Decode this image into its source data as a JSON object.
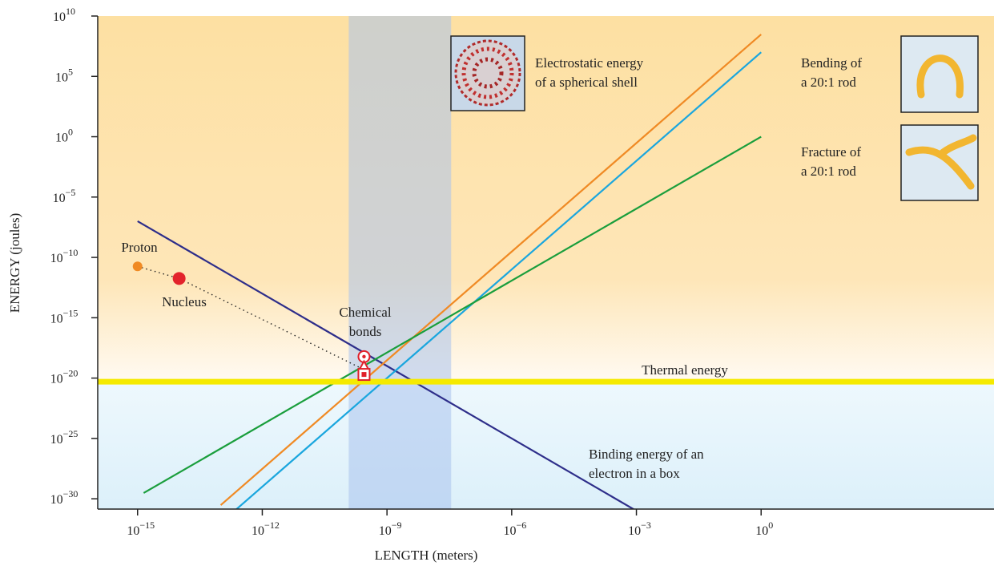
{
  "chart_data": {
    "type": "line",
    "xlabel": "LENGTH (meters)",
    "ylabel": "ENERGY (joules)",
    "xlog": true,
    "ylog": true,
    "xlim": [
      1.1e-16,
      400000.0
    ],
    "ylim": [
      1.4e-31,
      10000000000.0
    ],
    "xticks": [
      {
        "value": 1e-15,
        "label": "10−15"
      },
      {
        "value": 1e-12,
        "label": "10−12"
      },
      {
        "value": 1e-09,
        "label": "10−9"
      },
      {
        "value": 1e-06,
        "label": "10−6"
      },
      {
        "value": 0.001,
        "label": "10−3"
      },
      {
        "value": 1,
        "label": "100"
      }
    ],
    "yticks": [
      {
        "value": 10000000000.0,
        "label": "1010"
      },
      {
        "value": 100000.0,
        "label": "105"
      },
      {
        "value": 1,
        "label": "100"
      },
      {
        "value": 1e-05,
        "label": "10−5"
      },
      {
        "value": 1e-10,
        "label": "10−10"
      },
      {
        "value": 1e-15,
        "label": "10−15"
      },
      {
        "value": 1e-20,
        "label": "10−20"
      },
      {
        "value": 1e-25,
        "label": "10−25"
      },
      {
        "value": 1e-30,
        "label": "10−30"
      }
    ],
    "series": [
      {
        "label": [
          "Binding energy of an",
          "electron in a box"
        ],
        "color": "#2e2e8a",
        "x": [
          1e-15,
          0.001
        ],
        "values": [
          1e-07,
          1e-31
        ]
      },
      {
        "label": [
          "Electrostatic energy",
          "of a spherical shell"
        ],
        "color": "#f08a24",
        "x": [
          1e-13,
          1
        ],
        "values": [
          3e-31,
          300000000.0
        ]
      },
      {
        "label": [
          "Bending of",
          "a 20:1 rod"
        ],
        "color": "#1aa6de",
        "x": [
          1e-13,
          1
        ],
        "values": [
          1e-32,
          10000000.0
        ]
      },
      {
        "label": [
          "Fracture of",
          "a 20:1 rod"
        ],
        "color": "#1a9e3c",
        "x": [
          1.4e-15,
          1
        ],
        "values": [
          3e-30,
          1
        ]
      }
    ],
    "thermal": {
      "label": "Thermal energy",
      "value": 5e-21,
      "color": "#f5ea00"
    },
    "band": {
      "label": [
        "Chemical",
        "bonds"
      ],
      "range": [
        1.2e-10,
        3.5e-08
      ],
      "color": "#a9c3ec"
    },
    "points": [
      {
        "label": "Proton",
        "x": 1e-15,
        "y": 1.8e-11,
        "color": "#f08a24"
      },
      {
        "label": "Nucleus",
        "x": 1e-14,
        "y": 1.8e-12,
        "color": "#e3232b"
      }
    ],
    "trend": {
      "x": [
        1e-15,
        1e-14,
        2.8e-10
      ],
      "values": [
        1.8e-11,
        1.8e-12,
        5e-20
      ]
    },
    "markers": [
      {
        "shape": "circle",
        "x": 2.8e-10,
        "y": 6e-19,
        "color": "#e0202a"
      },
      {
        "shape": "triangle",
        "x": 2.8e-10,
        "y": 1e-19,
        "color": "#e0202a"
      },
      {
        "shape": "square",
        "x": 2.8e-10,
        "y": 2e-20,
        "color": "#e0202a"
      }
    ]
  }
}
